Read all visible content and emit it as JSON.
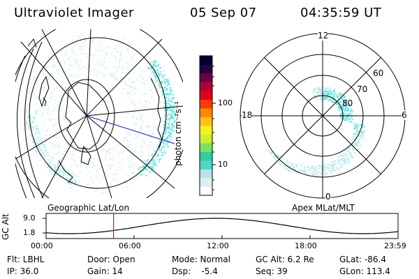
{
  "header": {
    "instrument": "Ultraviolet Imager",
    "date": "05 Sep 07",
    "time": "04:35:59 UT"
  },
  "left_panel": {
    "caption": "Geographic Lat/Lon"
  },
  "right_panel": {
    "caption": "Apex MLat/MLT",
    "mlt_labels": {
      "top": "12",
      "left": "18",
      "right": "6",
      "bottom": "0"
    },
    "lat_labels": [
      "60",
      "70",
      "80"
    ]
  },
  "colorbar": {
    "unit_label": "photon cm⁻²s⁻¹",
    "tick_labels": [
      "100",
      "10"
    ],
    "colors": [
      "#ffffff",
      "#dfeff0",
      "#b6e6e6",
      "#4fd6c8",
      "#2ecfa0",
      "#7fe05a",
      "#c9f032",
      "#f3f31a",
      "#ffc01a",
      "#ff8a00",
      "#ff3b00",
      "#e0001a",
      "#b0003a",
      "#6a0044",
      "#2a0040",
      "#000030"
    ]
  },
  "altitude_plot": {
    "ylabel": "GC Alt",
    "ytick_labels": [
      "9.0",
      "1.8"
    ],
    "xtick_labels": [
      "00:00",
      "06:00",
      "12:00",
      "18:00",
      "23:59"
    ],
    "current_hour": 4.6,
    "curve_color": "#000000",
    "marker_color": "#ff0000"
  },
  "info": {
    "flt": "Flt: LBHL",
    "door": "Door: Open",
    "mode": "Mode: Normal",
    "gc_alt": "GC Alt: 6.2 Re",
    "glat": "GLat: -86.4",
    "ip": "IP: 36.0",
    "gain": "Gain: 14",
    "dsp": "Dsp:    -5.4",
    "seq": "Seq: 39",
    "glon": "GLon: 113.4"
  },
  "aurora_color": "#5ee0df"
}
